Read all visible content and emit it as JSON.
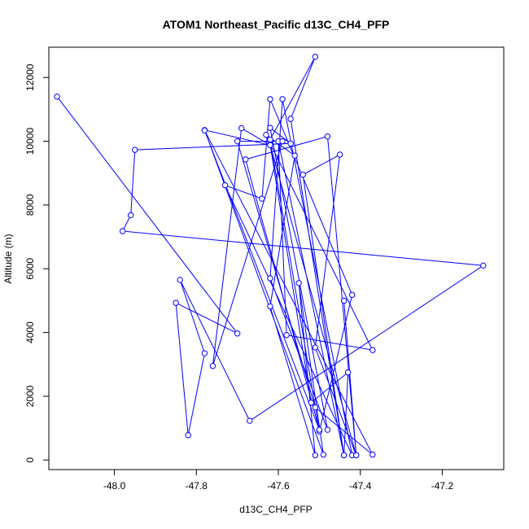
{
  "chart_data": {
    "type": "line",
    "title": "ATOM1 Northeast_Pacific d13C_CH4_PFP",
    "xlabel": "d13C_CH4_PFP",
    "ylabel": "Altitude (m)",
    "xlim": [
      -48.16,
      -47.05
    ],
    "ylim": [
      -300,
      12950
    ],
    "xticks": [
      -48.0,
      -47.8,
      -47.6,
      -47.4,
      -47.2
    ],
    "xtick_labels": [
      "-48.0",
      "-47.8",
      "-47.6",
      "-47.4",
      "-47.2"
    ],
    "yticks": [
      0,
      2000,
      4000,
      6000,
      8000,
      10000,
      12000
    ],
    "ytick_labels": [
      "0",
      "2000",
      "4000",
      "6000",
      "8000",
      "10000",
      "12000"
    ],
    "grid": false,
    "legend": "none",
    "color": "#0000ff",
    "markers": "open-circle",
    "series": [
      {
        "x": [
          -48.14,
          -47.7,
          -47.85,
          -47.82,
          -47.78,
          -47.84,
          -47.67,
          -47.1,
          -47.98,
          -47.96,
          -47.95,
          -47.57,
          -47.62,
          -47.48,
          -47.62,
          -47.59,
          -47.42,
          -47.73,
          -47.64,
          -47.62,
          -47.42,
          -47.5,
          -47.62,
          -47.51,
          -47.57,
          -47.44,
          -47.54,
          -47.45,
          -47.51,
          -47.41,
          -47.62,
          -47.52,
          -47.43,
          -47.44,
          -47.6,
          -47.58,
          -47.37,
          -47.63,
          -47.56,
          -47.62,
          -47.51,
          -47.55,
          -47.49,
          -47.78,
          -47.62,
          -47.69,
          -47.76,
          -47.59,
          -47.7,
          -47.51,
          -47.37,
          -47.78,
          -47.5,
          -47.68,
          -47.48,
          -47.41,
          -47.44
        ],
        "y": [
          11400,
          3970,
          4930,
          780,
          3350,
          5650,
          1230,
          6100,
          7180,
          7680,
          9730,
          9930,
          10420,
          950,
          5700,
          11320,
          150,
          8620,
          8200,
          11320,
          5180,
          900,
          10050,
          12650,
          10700,
          150,
          8950,
          9580,
          3530,
          150,
          9900,
          1800,
          2750,
          150,
          10000,
          3920,
          3450,
          10200,
          9550,
          4820,
          150,
          5550,
          170,
          10350,
          9880,
          10410,
          2950,
          10000,
          10000,
          1650,
          170,
          10340,
          950,
          9430,
          10150,
          150,
          5000
        ]
      }
    ]
  }
}
